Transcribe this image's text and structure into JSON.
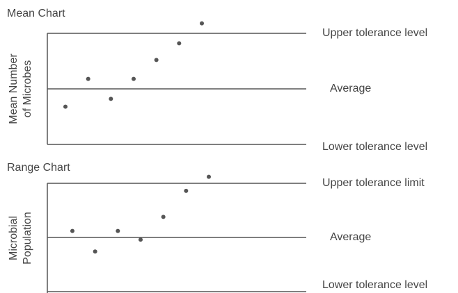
{
  "chart_data": [
    {
      "type": "scatter",
      "title": "Mean Chart",
      "y_label": [
        "Mean Number",
        "of Microbes"
      ],
      "categories": [
        null,
        null,
        null,
        null,
        null,
        null,
        null
      ],
      "values": [
        34,
        59,
        41,
        59,
        76,
        91,
        109
      ],
      "color": "#555555",
      "ylim": [
        0,
        100
      ],
      "yticks": [
        {
          "value": 0,
          "label": "Lower tolerance level"
        },
        {
          "value": 50,
          "label": "Average"
        },
        {
          "value": 100,
          "label": "Upper tolerance level"
        }
      ],
      "grid": true
    },
    {
      "type": "scatter",
      "title": "Range Chart",
      "y_label": [
        "Microbial",
        "Population"
      ],
      "categories": [
        null,
        null,
        null,
        null,
        null,
        null,
        null
      ],
      "values": [
        56,
        37,
        56,
        48,
        69,
        93,
        106
      ],
      "color": "#555555",
      "ylim": [
        0,
        100
      ],
      "yticks": [
        {
          "value": 0,
          "label": "Lower tolerance level"
        },
        {
          "value": 50,
          "label": "Average"
        },
        {
          "value": 100,
          "label": "Upper tolerance limit"
        }
      ],
      "grid": true
    }
  ]
}
